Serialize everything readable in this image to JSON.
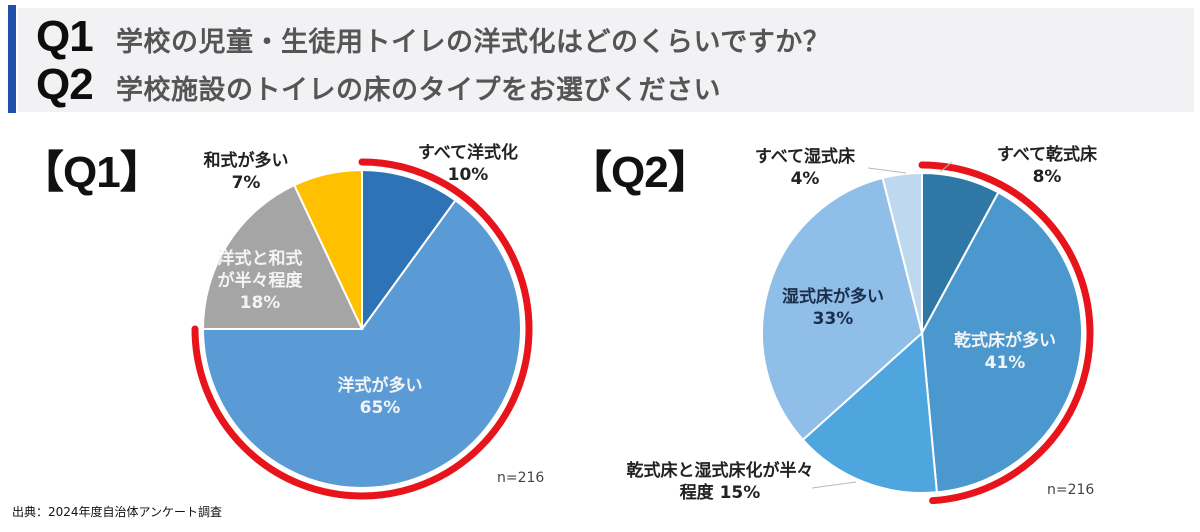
{
  "header": {
    "q1_tag": "Q1",
    "q1_text": "学校の児童・生徒用トイレの洋式化はどのくらいですか？",
    "q2_tag": "Q2",
    "q2_text": "学校施設のトイレの床のタイプをお選びください"
  },
  "sections": {
    "q1_label": "【Q1】",
    "q2_label": "【Q2】"
  },
  "charts": {
    "q1": {
      "n_label": "n=216",
      "slices": [
        {
          "line1": "すべて洋式化",
          "line2": "10%"
        },
        {
          "line1": "洋式が多い",
          "line2": "65%"
        },
        {
          "line1": "洋式と和式",
          "line2": "が半々程度",
          "line3": "18%"
        },
        {
          "line1": "和式が多い",
          "line2": "7%"
        }
      ]
    },
    "q2": {
      "n_label": "n=216",
      "slices": [
        {
          "line1": "すべて乾式床",
          "line2": "8%"
        },
        {
          "line1": "乾式床が多い",
          "line2": "41%"
        },
        {
          "line1": "乾式床と湿式床化が半々",
          "line2": "程度 15%"
        },
        {
          "line1": "湿式床が多い",
          "line2": "33%"
        },
        {
          "line1": "すべて湿式床",
          "line2": "4%"
        }
      ]
    }
  },
  "footer": {
    "source": "出典：2024年度自治体アンケート調査"
  },
  "colors": {
    "accent_bar": "#1f4fa8",
    "highlight_arc": "#e8141c"
  },
  "chart_data": [
    {
      "type": "pie",
      "title": "Q1 学校の児童・生徒用トイレの洋式化はどのくらいですか？",
      "categories": [
        "すべて洋式化",
        "洋式が多い",
        "洋式と和式が半々程度",
        "和式が多い"
      ],
      "values": [
        10,
        65,
        18,
        7
      ],
      "colors": [
        "#2e73b5",
        "#5b9bd5",
        "#a5a5a5",
        "#ffc000"
      ],
      "annotations": [
        "n=216",
        "red arc highlights すべて洋式化 + 洋式が多い (75%)"
      ]
    },
    {
      "type": "pie",
      "title": "Q2 学校施設のトイレの床のタイプをお選びください",
      "categories": [
        "すべて乾式床",
        "乾式床が多い",
        "乾式床と湿式床化が半々程度",
        "湿式床が多い",
        "すべて湿式床"
      ],
      "values": [
        8,
        41,
        15,
        33,
        4
      ],
      "colors": [
        "#2f78a6",
        "#4a98cd",
        "#4fa6df",
        "#8fbee9",
        "#bed8ef"
      ],
      "annotations": [
        "n=216",
        "red arc highlights すべて乾式床 + 乾式床が多い (49%)"
      ]
    }
  ]
}
